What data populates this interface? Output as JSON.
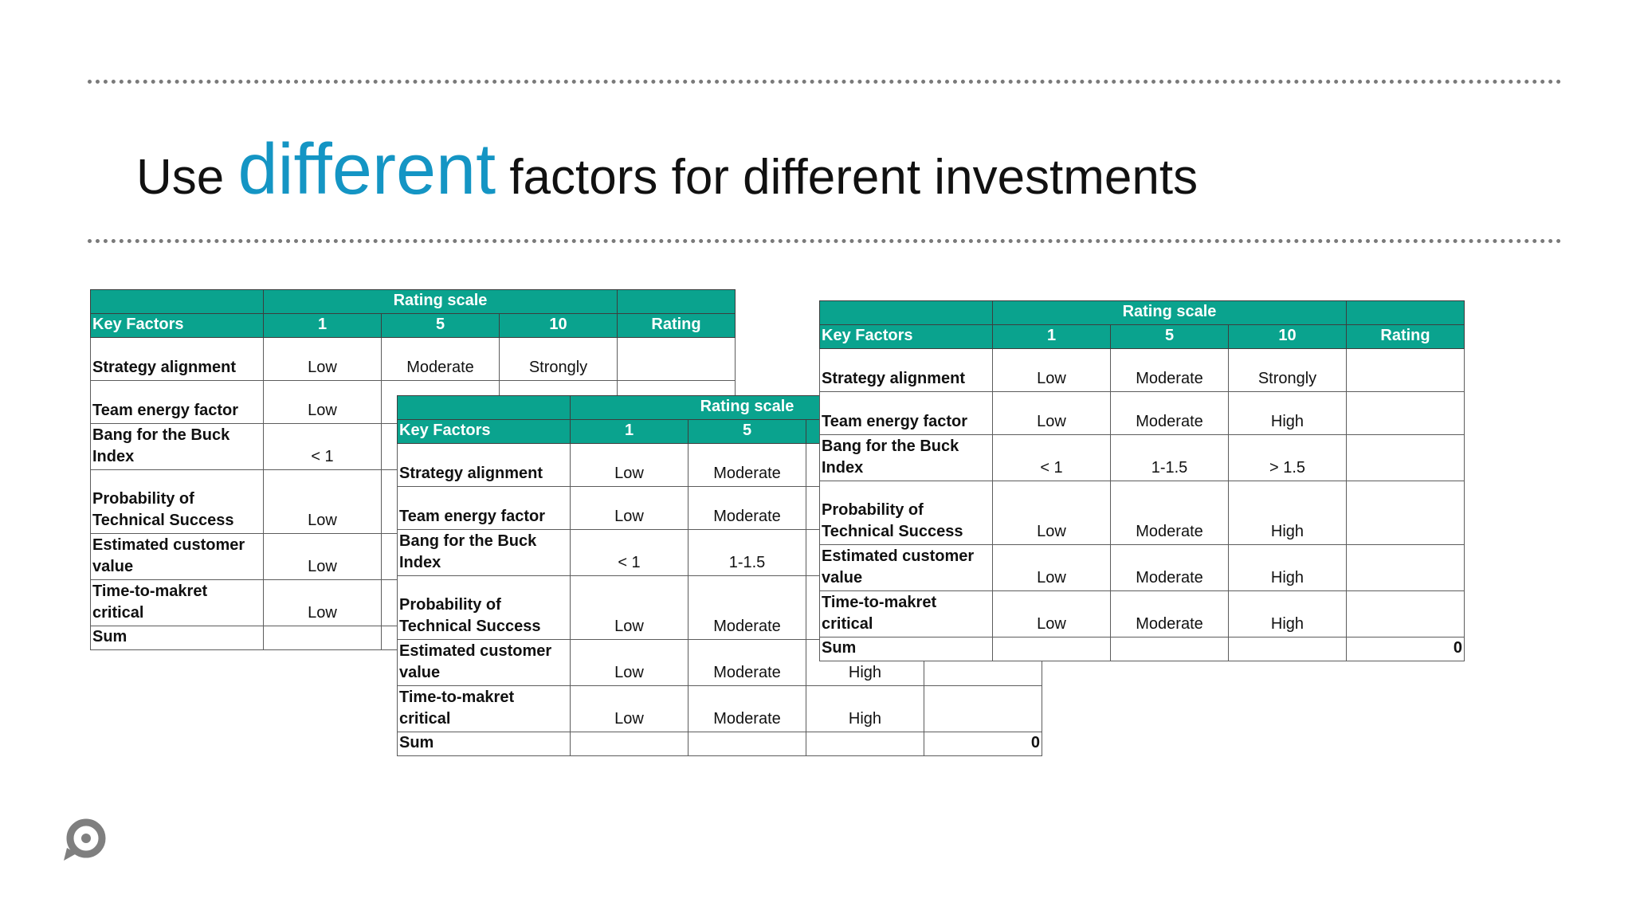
{
  "slide": {
    "title_before": "Use",
    "title_accent": "different",
    "title_after": "factors for different investments"
  },
  "colors": {
    "accent": "#1495c4",
    "table_header": "#0aa38e",
    "dots": "#7a7a7a"
  },
  "header": {
    "rating_scale": "Rating scale",
    "key_factors": "Key Factors",
    "col_1": "1",
    "col_5": "5",
    "col_10": "10",
    "rating": "Rating"
  },
  "tables": [
    {
      "rows": [
        {
          "factor": "Strategy alignment",
          "v1": "Low",
          "v5": "Moderate",
          "v10": "Strongly",
          "rating": ""
        },
        {
          "factor": "Team energy factor",
          "v1": "Low",
          "v5": "",
          "v10": "",
          "rating": ""
        },
        {
          "factor": "Bang for the  Buck Index",
          "v1": "< 1",
          "v5": "",
          "v10": "",
          "rating": ""
        },
        {
          "factor": "Probability of Technical Success",
          "v1": "Low",
          "v5": "",
          "v10": "",
          "rating": ""
        },
        {
          "factor": "Estimated customer value",
          "v1": "Low",
          "v5": "",
          "v10": "",
          "rating": ""
        },
        {
          "factor": "Time-to-makret critical",
          "v1": "Low",
          "v5": "",
          "v10": "",
          "rating": ""
        }
      ],
      "sum_label": "Sum",
      "sum_value": ""
    },
    {
      "rows": [
        {
          "factor": "Strategy alignment",
          "v1": "Low",
          "v5": "Moderate",
          "v10": "",
          "rating": ""
        },
        {
          "factor": "Team energy factor",
          "v1": "Low",
          "v5": "Moderate",
          "v10": "",
          "rating": ""
        },
        {
          "factor": "Bang for the  Buck Index",
          "v1": "< 1",
          "v5": "1-1.5",
          "v10": "",
          "rating": ""
        },
        {
          "factor": "Probability of Technical Success",
          "v1": "Low",
          "v5": "Moderate",
          "v10": "",
          "rating": ""
        },
        {
          "factor": "Estimated customer value",
          "v1": "Low",
          "v5": "Moderate",
          "v10": "High",
          "rating": ""
        },
        {
          "factor": "Time-to-makret critical",
          "v1": "Low",
          "v5": "Moderate",
          "v10": "High",
          "rating": ""
        }
      ],
      "sum_label": "Sum",
      "sum_value": "0"
    },
    {
      "rows": [
        {
          "factor": "Strategy alignment",
          "v1": "Low",
          "v5": "Moderate",
          "v10": "Strongly",
          "rating": ""
        },
        {
          "factor": "Team energy factor",
          "v1": "Low",
          "v5": "Moderate",
          "v10": "High",
          "rating": ""
        },
        {
          "factor": "Bang for the  Buck Index",
          "v1": "< 1",
          "v5": "1-1.5",
          "v10": "> 1.5",
          "rating": ""
        },
        {
          "factor": "Probability of Technical Success",
          "v1": "Low",
          "v5": "Moderate",
          "v10": "High",
          "rating": ""
        },
        {
          "factor": "Estimated customer value",
          "v1": "Low",
          "v5": "Moderate",
          "v10": "High",
          "rating": ""
        },
        {
          "factor": "Time-to-makret critical",
          "v1": "Low",
          "v5": "Moderate",
          "v10": "High",
          "rating": ""
        }
      ],
      "sum_label": "Sum",
      "sum_value": "0"
    }
  ],
  "logo": {
    "icon": "chat-bubble-logo-icon"
  }
}
